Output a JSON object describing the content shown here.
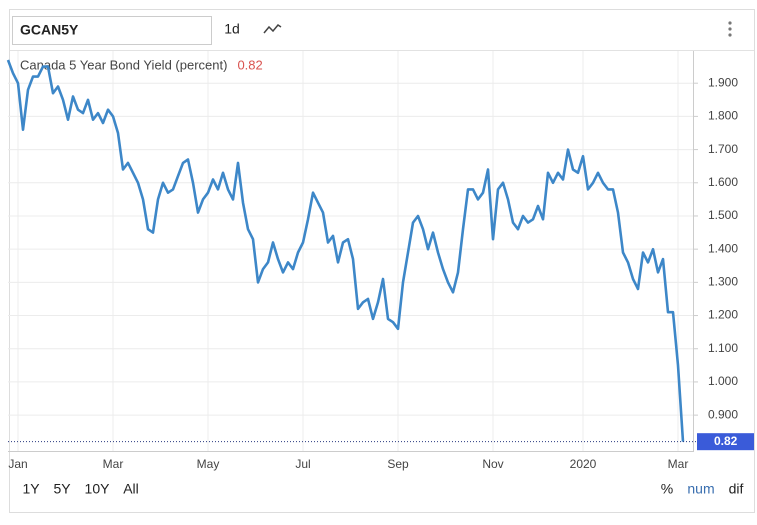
{
  "toolbar": {
    "ticker": "GCAN5Y",
    "interval": "1d"
  },
  "footer": {
    "ranges": [
      "1Y",
      "5Y",
      "10Y",
      "All"
    ],
    "modes": [
      "%",
      "num",
      "dif"
    ]
  },
  "chart_data": {
    "type": "line",
    "categories": [
      null,
      null,
      "Jan",
      null,
      null,
      null,
      null,
      null,
      null,
      null,
      null,
      null,
      null,
      null,
      null,
      null,
      null,
      null,
      null,
      null,
      null,
      "Mar",
      null,
      null,
      null,
      null,
      null,
      null,
      null,
      null,
      null,
      null,
      null,
      null,
      null,
      null,
      null,
      null,
      null,
      null,
      "May",
      null,
      null,
      null,
      null,
      null,
      null,
      null,
      null,
      null,
      null,
      null,
      null,
      null,
      null,
      null,
      null,
      null,
      null,
      "Jul",
      null,
      null,
      null,
      null,
      null,
      null,
      null,
      null,
      null,
      null,
      null,
      null,
      null,
      null,
      null,
      null,
      null,
      null,
      "Sep",
      null,
      null,
      null,
      null,
      null,
      null,
      null,
      null,
      null,
      null,
      null,
      null,
      null,
      null,
      null,
      null,
      null,
      null,
      "Nov",
      null,
      null,
      null,
      null,
      null,
      null,
      null,
      null,
      null,
      null,
      null,
      null,
      null,
      null,
      null,
      null,
      null,
      "2020",
      null,
      null,
      null,
      null,
      null,
      null,
      null,
      null,
      null,
      null,
      null,
      null,
      null,
      null,
      null,
      null,
      null,
      null,
      "Mar",
      null
    ],
    "series": [
      {
        "name": "Canada 5 Year Bond Yield (percent)",
        "color": "#3d87c8",
        "values": [
          1.97,
          1.93,
          1.9,
          1.76,
          1.88,
          1.92,
          1.92,
          1.95,
          1.95,
          1.87,
          1.89,
          1.85,
          1.79,
          1.86,
          1.82,
          1.81,
          1.85,
          1.79,
          1.81,
          1.78,
          1.82,
          1.8,
          1.75,
          1.64,
          1.66,
          1.63,
          1.6,
          1.55,
          1.46,
          1.45,
          1.55,
          1.6,
          1.57,
          1.58,
          1.62,
          1.66,
          1.67,
          1.6,
          1.51,
          1.55,
          1.57,
          1.61,
          1.58,
          1.63,
          1.58,
          1.55,
          1.66,
          1.54,
          1.46,
          1.43,
          1.3,
          1.34,
          1.36,
          1.42,
          1.37,
          1.33,
          1.36,
          1.34,
          1.39,
          1.42,
          1.49,
          1.57,
          1.54,
          1.51,
          1.42,
          1.44,
          1.36,
          1.42,
          1.43,
          1.37,
          1.22,
          1.24,
          1.25,
          1.19,
          1.24,
          1.31,
          1.19,
          1.18,
          1.16,
          1.3,
          1.39,
          1.48,
          1.5,
          1.46,
          1.4,
          1.45,
          1.39,
          1.34,
          1.3,
          1.27,
          1.33,
          1.46,
          1.58,
          1.58,
          1.55,
          1.57,
          1.64,
          1.43,
          1.58,
          1.6,
          1.55,
          1.48,
          1.46,
          1.5,
          1.48,
          1.49,
          1.53,
          1.49,
          1.63,
          1.6,
          1.63,
          1.61,
          1.7,
          1.64,
          1.63,
          1.68,
          1.58,
          1.6,
          1.63,
          1.6,
          1.58,
          1.58,
          1.51,
          1.39,
          1.36,
          1.31,
          1.28,
          1.39,
          1.36,
          1.4,
          1.33,
          1.37,
          1.21,
          1.21,
          1.05,
          0.82
        ]
      }
    ],
    "ylim": [
      0.81,
      2.0
    ],
    "yticks": [
      {
        "value": 0.9,
        "label": "0.900"
      },
      {
        "value": 1.0,
        "label": "1.000"
      },
      {
        "value": 1.1,
        "label": "1.100"
      },
      {
        "value": 1.2,
        "label": "1.200"
      },
      {
        "value": 1.3,
        "label": "1.300"
      },
      {
        "value": 1.4,
        "label": "1.400"
      },
      {
        "value": 1.5,
        "label": "1.500"
      },
      {
        "value": 1.6,
        "label": "1.600"
      },
      {
        "value": 1.7,
        "label": "1.700"
      },
      {
        "value": 1.8,
        "label": "1.800"
      },
      {
        "value": 1.9,
        "label": "1.900"
      }
    ],
    "grid": true,
    "last_value_color": "#3a5bd9"
  }
}
